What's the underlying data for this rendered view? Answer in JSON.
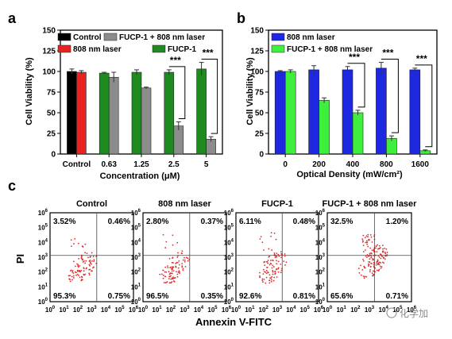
{
  "figure": {
    "panel_labels": [
      "a",
      "b",
      "c"
    ],
    "watermark": "化学加",
    "colors": {
      "black": "#000000",
      "red": "#e8221f",
      "green": "#1f8a1f",
      "gray": "#8c8c8c",
      "blue": "#1e28e0",
      "lightgreen": "#3cf03c",
      "dot": "#e02a2a"
    }
  },
  "chart_data": [
    {
      "panel": "a",
      "type": "bar",
      "ylabel": "Cell Viability (%)",
      "xlabel": "Concentration (μM)",
      "categories": [
        "Control",
        "0.63",
        "1.25",
        "2.5",
        "5"
      ],
      "ylim": [
        0,
        150
      ],
      "yticks": [
        "0",
        "25",
        "50",
        "75",
        "100",
        "125",
        "150"
      ],
      "legend": [
        {
          "name": "Control",
          "color": "black"
        },
        {
          "name": "808 nm laser",
          "color": "red"
        },
        {
          "name": "FUCP-1 + 808 nm laser",
          "color": "gray"
        },
        {
          "name": "FUCP-1",
          "color": "green"
        }
      ],
      "groups": [
        {
          "category": "Control",
          "bars": [
            {
              "series": "Control",
              "color": "black",
              "value": 100,
              "error": 3
            },
            {
              "series": "808 nm laser",
              "color": "red",
              "value": 99,
              "error": 2
            }
          ]
        },
        {
          "category": "0.63",
          "bars": [
            {
              "series": "FUCP-1",
              "color": "green",
              "value": 98,
              "error": 1
            },
            {
              "series": "FUCP-1 + 808 nm laser",
              "color": "gray",
              "value": 93,
              "error": 6
            }
          ]
        },
        {
          "category": "1.25",
          "bars": [
            {
              "series": "FUCP-1",
              "color": "green",
              "value": 99,
              "error": 3
            },
            {
              "series": "FUCP-1 + 808 nm laser",
              "color": "gray",
              "value": 80,
              "error": 1
            }
          ]
        },
        {
          "category": "2.5",
          "bars": [
            {
              "series": "FUCP-1",
              "color": "green",
              "value": 99,
              "error": 3
            },
            {
              "series": "FUCP-1 + 808 nm laser",
              "color": "gray",
              "value": 34,
              "error": 5
            }
          ]
        },
        {
          "category": "5",
          "bars": [
            {
              "series": "FUCP-1",
              "color": "green",
              "value": 103,
              "error": 8
            },
            {
              "series": "FUCP-1 + 808 nm laser",
              "color": "gray",
              "value": 18,
              "error": 3
            }
          ]
        }
      ],
      "significance": [
        {
          "category": "2.5",
          "label": "***"
        },
        {
          "category": "5",
          "label": "***"
        }
      ]
    },
    {
      "panel": "b",
      "type": "bar",
      "ylabel": "Cell Viability (%)",
      "xlabel": "Optical Density (mW/cm²)",
      "categories": [
        "0",
        "200",
        "400",
        "800",
        "1600"
      ],
      "ylim": [
        0,
        150
      ],
      "yticks": [
        "0",
        "25",
        "50",
        "75",
        "100",
        "125",
        "150"
      ],
      "legend": [
        {
          "name": "808 nm laser",
          "color": "blue"
        },
        {
          "name": "FUCP-1 + 808 nm laser",
          "color": "lightgreen"
        }
      ],
      "groups": [
        {
          "category": "0",
          "bars": [
            {
              "series": "808 nm laser",
              "color": "blue",
              "value": 100,
              "error": 1
            },
            {
              "series": "FUCP-1 + 808 nm laser",
              "color": "lightgreen",
              "value": 100,
              "error": 2
            }
          ]
        },
        {
          "category": "200",
          "bars": [
            {
              "series": "808 nm laser",
              "color": "blue",
              "value": 102,
              "error": 5
            },
            {
              "series": "FUCP-1 + 808 nm laser",
              "color": "lightgreen",
              "value": 65,
              "error": 3
            }
          ]
        },
        {
          "category": "400",
          "bars": [
            {
              "series": "808 nm laser",
              "color": "blue",
              "value": 102,
              "error": 4
            },
            {
              "series": "FUCP-1 + 808 nm laser",
              "color": "lightgreen",
              "value": 50,
              "error": 3
            }
          ]
        },
        {
          "category": "800",
          "bars": [
            {
              "series": "808 nm laser",
              "color": "blue",
              "value": 104,
              "error": 7
            },
            {
              "series": "FUCP-1 + 808 nm laser",
              "color": "lightgreen",
              "value": 19,
              "error": 3
            }
          ]
        },
        {
          "category": "1600",
          "bars": [
            {
              "series": "808 nm laser",
              "color": "blue",
              "value": 102,
              "error": 2
            },
            {
              "series": "FUCP-1 + 808 nm laser",
              "color": "lightgreen",
              "value": 4,
              "error": 1
            }
          ]
        }
      ],
      "significance": [
        {
          "category": "400",
          "label": "***"
        },
        {
          "category": "800",
          "label": "***"
        },
        {
          "category": "1600",
          "label": "***"
        }
      ]
    },
    {
      "panel": "c",
      "type": "scatter",
      "xlabel": "Annexin V-FITC",
      "ylabel": "PI",
      "tick_exponents": [
        "0",
        "1",
        "2",
        "3",
        "4",
        "5",
        "6"
      ],
      "plots": [
        {
          "title": "Control",
          "quadrants": {
            "top_left": "3.52%",
            "top_right": "0.46%",
            "bottom_left": "95.3%",
            "bottom_right": "0.75%"
          }
        },
        {
          "title": "808 nm laser",
          "quadrants": {
            "top_left": "2.80%",
            "top_right": "0.37%",
            "bottom_left": "96.5%",
            "bottom_right": "0.35%"
          }
        },
        {
          "title": "FUCP-1",
          "quadrants": {
            "top_left": "6.11%",
            "top_right": "0.48%",
            "bottom_left": "92.6%",
            "bottom_right": "0.81%"
          }
        },
        {
          "title": "FUCP-1 + 808 nm laser",
          "quadrants": {
            "top_left": "32.5%",
            "top_right": "1.20%",
            "bottom_left": "65.6%",
            "bottom_right": "0.71%"
          }
        }
      ]
    }
  ]
}
